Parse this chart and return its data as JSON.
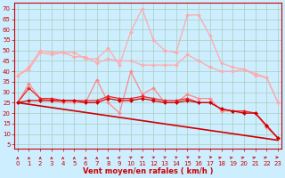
{
  "background_color": "#cceeff",
  "grid_color": "#aaccbb",
  "xlabel": "Vent moyen/en rafales ( km/h )",
  "ylabel_ticks": [
    5,
    10,
    15,
    20,
    25,
    30,
    35,
    40,
    45,
    50,
    55,
    60,
    65,
    70
  ],
  "x_ticks": [
    0,
    1,
    2,
    3,
    4,
    5,
    6,
    7,
    8,
    9,
    10,
    11,
    12,
    13,
    14,
    15,
    16,
    17,
    18,
    19,
    20,
    21,
    22,
    23
  ],
  "xlim": [
    -0.3,
    23.3
  ],
  "ylim": [
    3,
    73
  ],
  "lines": [
    {
      "color": "#ffaaaa",
      "lw": 0.9,
      "marker": "D",
      "ms": 2.0,
      "data_x": [
        0,
        1,
        2,
        3,
        4,
        5,
        6,
        7,
        8,
        9,
        10,
        11,
        12,
        13,
        14,
        15,
        16,
        17,
        18,
        19,
        20,
        21,
        22,
        23
      ],
      "data_y": [
        38,
        42,
        50,
        49,
        49,
        49,
        46,
        46,
        51,
        43,
        59,
        70,
        55,
        50,
        49,
        67,
        67,
        57,
        44,
        42,
        41,
        39,
        37,
        25
      ]
    },
    {
      "color": "#ffaaaa",
      "lw": 0.9,
      "marker": "D",
      "ms": 2.0,
      "data_x": [
        0,
        1,
        2,
        3,
        4,
        5,
        6,
        7,
        8,
        9,
        10,
        11,
        12,
        13,
        14,
        15,
        16,
        17,
        18,
        19,
        20,
        21,
        22,
        23
      ],
      "data_y": [
        38,
        41,
        49,
        48,
        49,
        47,
        47,
        44,
        46,
        45,
        45,
        43,
        43,
        43,
        43,
        48,
        45,
        42,
        40,
        40,
        41,
        38,
        37,
        25
      ]
    },
    {
      "color": "#ff8888",
      "lw": 0.9,
      "marker": "D",
      "ms": 2.0,
      "data_x": [
        0,
        1,
        2,
        3,
        4,
        5,
        6,
        7,
        8,
        9,
        10,
        11,
        12,
        13,
        14,
        15,
        16,
        17,
        18,
        19,
        20,
        21,
        22,
        23
      ],
      "data_y": [
        25,
        34,
        27,
        26,
        25,
        25,
        25,
        36,
        25,
        20,
        40,
        29,
        32,
        25,
        25,
        29,
        27,
        27,
        21,
        21,
        20,
        20,
        13,
        8
      ]
    },
    {
      "color": "#ee2222",
      "lw": 0.9,
      "marker": "D",
      "ms": 2.0,
      "data_x": [
        0,
        1,
        2,
        3,
        4,
        5,
        6,
        7,
        8,
        9,
        10,
        11,
        12,
        13,
        14,
        15,
        16,
        17,
        18,
        19,
        20,
        21,
        22,
        23
      ],
      "data_y": [
        25,
        32,
        27,
        27,
        26,
        26,
        26,
        26,
        28,
        27,
        27,
        28,
        27,
        26,
        26,
        27,
        25,
        25,
        22,
        21,
        21,
        20,
        14,
        8
      ]
    },
    {
      "color": "#cc0000",
      "lw": 0.9,
      "marker": "D",
      "ms": 2.0,
      "data_x": [
        0,
        1,
        2,
        3,
        4,
        5,
        6,
        7,
        8,
        9,
        10,
        11,
        12,
        13,
        14,
        15,
        16,
        17,
        18,
        19,
        20,
        21,
        22,
        23
      ],
      "data_y": [
        25,
        26,
        26,
        26,
        26,
        26,
        25,
        25,
        27,
        26,
        26,
        27,
        26,
        25,
        25,
        26,
        25,
        25,
        22,
        21,
        20,
        20,
        14,
        8
      ]
    },
    {
      "color": "#cc0000",
      "lw": 1.2,
      "marker": null,
      "ms": 0,
      "data_x": [
        0,
        23
      ],
      "data_y": [
        25,
        7
      ]
    }
  ],
  "arrow_angles": [
    90,
    90,
    90,
    90,
    90,
    90,
    90,
    90,
    80,
    70,
    60,
    60,
    55,
    55,
    55,
    45,
    40,
    40,
    35,
    35,
    30,
    30,
    25,
    0
  ],
  "arrow_color": "#cc0000",
  "title_fontsize": 7,
  "label_fontsize": 6,
  "tick_fontsize": 5
}
